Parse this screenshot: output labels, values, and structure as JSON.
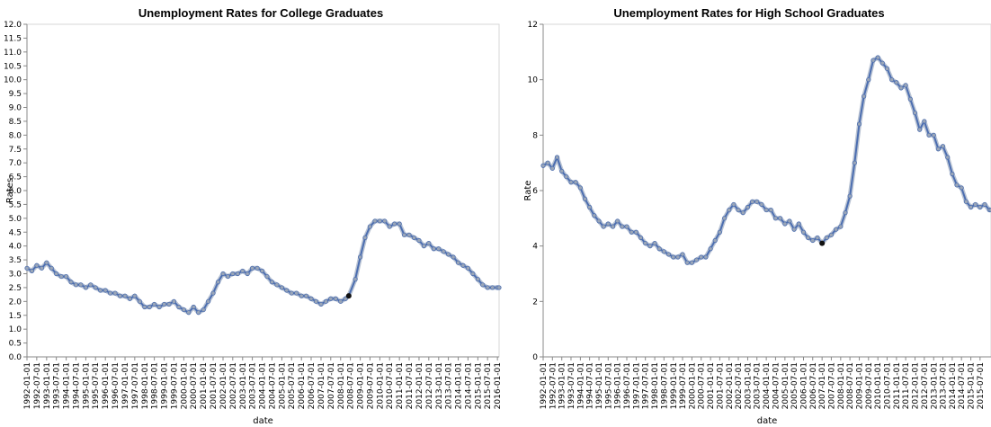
{
  "chart_data": [
    {
      "type": "line",
      "title": "Unemployment Rates for College Graduates",
      "xlabel": "date",
      "ylabel": "Rates",
      "ylim": [
        0,
        12
      ],
      "yticks": [
        0.0,
        0.5,
        1.0,
        1.5,
        2.0,
        2.5,
        3.0,
        3.5,
        4.0,
        4.5,
        5.0,
        5.5,
        6.0,
        6.5,
        7.0,
        7.5,
        8.0,
        8.5,
        9.0,
        9.5,
        10.0,
        10.5,
        11.0,
        11.5,
        12.0
      ],
      "xlim": [
        "1992-01-01",
        "2016-02-01"
      ],
      "grid": false,
      "line_color": "#4c6eb0",
      "point_color": "#9aa6b8",
      "highlight": {
        "x": "2008-06-01",
        "y": 2.2,
        "color": "#111111"
      },
      "series": [
        {
          "values": [
            {
              "x": "1992-01-01",
              "y": 3.2
            },
            {
              "x": "1992-04-01",
              "y": 3.1
            },
            {
              "x": "1992-07-01",
              "y": 3.3
            },
            {
              "x": "1992-10-01",
              "y": 3.2
            },
            {
              "x": "1993-01-01",
              "y": 3.4
            },
            {
              "x": "1993-04-01",
              "y": 3.2
            },
            {
              "x": "1993-07-01",
              "y": 3.0
            },
            {
              "x": "1993-10-01",
              "y": 2.9
            },
            {
              "x": "1994-01-01",
              "y": 2.9
            },
            {
              "x": "1994-04-01",
              "y": 2.7
            },
            {
              "x": "1994-07-01",
              "y": 2.6
            },
            {
              "x": "1994-10-01",
              "y": 2.6
            },
            {
              "x": "1995-01-01",
              "y": 2.5
            },
            {
              "x": "1995-04-01",
              "y": 2.6
            },
            {
              "x": "1995-07-01",
              "y": 2.5
            },
            {
              "x": "1995-10-01",
              "y": 2.4
            },
            {
              "x": "1996-01-01",
              "y": 2.4
            },
            {
              "x": "1996-04-01",
              "y": 2.3
            },
            {
              "x": "1996-07-01",
              "y": 2.3
            },
            {
              "x": "1996-10-01",
              "y": 2.2
            },
            {
              "x": "1997-01-01",
              "y": 2.2
            },
            {
              "x": "1997-04-01",
              "y": 2.1
            },
            {
              "x": "1997-07-01",
              "y": 2.2
            },
            {
              "x": "1997-10-01",
              "y": 2.0
            },
            {
              "x": "1998-01-01",
              "y": 1.8
            },
            {
              "x": "1998-04-01",
              "y": 1.8
            },
            {
              "x": "1998-07-01",
              "y": 1.9
            },
            {
              "x": "1998-10-01",
              "y": 1.8
            },
            {
              "x": "1999-01-01",
              "y": 1.9
            },
            {
              "x": "1999-04-01",
              "y": 1.9
            },
            {
              "x": "1999-07-01",
              "y": 2.0
            },
            {
              "x": "1999-10-01",
              "y": 1.8
            },
            {
              "x": "2000-01-01",
              "y": 1.7
            },
            {
              "x": "2000-04-01",
              "y": 1.6
            },
            {
              "x": "2000-07-01",
              "y": 1.8
            },
            {
              "x": "2000-10-01",
              "y": 1.6
            },
            {
              "x": "2001-01-01",
              "y": 1.7
            },
            {
              "x": "2001-04-01",
              "y": 2.0
            },
            {
              "x": "2001-07-01",
              "y": 2.3
            },
            {
              "x": "2001-10-01",
              "y": 2.7
            },
            {
              "x": "2002-01-01",
              "y": 3.0
            },
            {
              "x": "2002-04-01",
              "y": 2.9
            },
            {
              "x": "2002-07-01",
              "y": 3.0
            },
            {
              "x": "2002-10-01",
              "y": 3.0
            },
            {
              "x": "2003-01-01",
              "y": 3.1
            },
            {
              "x": "2003-04-01",
              "y": 3.0
            },
            {
              "x": "2003-07-01",
              "y": 3.2
            },
            {
              "x": "2003-10-01",
              "y": 3.2
            },
            {
              "x": "2004-01-01",
              "y": 3.1
            },
            {
              "x": "2004-04-01",
              "y": 2.9
            },
            {
              "x": "2004-07-01",
              "y": 2.7
            },
            {
              "x": "2004-10-01",
              "y": 2.6
            },
            {
              "x": "2005-01-01",
              "y": 2.5
            },
            {
              "x": "2005-04-01",
              "y": 2.4
            },
            {
              "x": "2005-07-01",
              "y": 2.3
            },
            {
              "x": "2005-10-01",
              "y": 2.3
            },
            {
              "x": "2006-01-01",
              "y": 2.2
            },
            {
              "x": "2006-04-01",
              "y": 2.2
            },
            {
              "x": "2006-07-01",
              "y": 2.1
            },
            {
              "x": "2006-10-01",
              "y": 2.0
            },
            {
              "x": "2007-01-01",
              "y": 1.9
            },
            {
              "x": "2007-04-01",
              "y": 2.0
            },
            {
              "x": "2007-07-01",
              "y": 2.1
            },
            {
              "x": "2007-10-01",
              "y": 2.1
            },
            {
              "x": "2008-01-01",
              "y": 2.0
            },
            {
              "x": "2008-04-01",
              "y": 2.1
            },
            {
              "x": "2008-06-01",
              "y": 2.2
            },
            {
              "x": "2008-10-01",
              "y": 2.8
            },
            {
              "x": "2009-01-01",
              "y": 3.6
            },
            {
              "x": "2009-04-01",
              "y": 4.3
            },
            {
              "x": "2009-07-01",
              "y": 4.7
            },
            {
              "x": "2009-10-01",
              "y": 4.9
            },
            {
              "x": "2010-01-01",
              "y": 4.9
            },
            {
              "x": "2010-04-01",
              "y": 4.9
            },
            {
              "x": "2010-07-01",
              "y": 4.7
            },
            {
              "x": "2010-10-01",
              "y": 4.8
            },
            {
              "x": "2011-01-01",
              "y": 4.8
            },
            {
              "x": "2011-04-01",
              "y": 4.4
            },
            {
              "x": "2011-07-01",
              "y": 4.4
            },
            {
              "x": "2011-10-01",
              "y": 4.3
            },
            {
              "x": "2012-01-01",
              "y": 4.2
            },
            {
              "x": "2012-04-01",
              "y": 4.0
            },
            {
              "x": "2012-07-01",
              "y": 4.1
            },
            {
              "x": "2012-10-01",
              "y": 3.9
            },
            {
              "x": "2013-01-01",
              "y": 3.9
            },
            {
              "x": "2013-04-01",
              "y": 3.8
            },
            {
              "x": "2013-07-01",
              "y": 3.7
            },
            {
              "x": "2013-10-01",
              "y": 3.6
            },
            {
              "x": "2014-01-01",
              "y": 3.4
            },
            {
              "x": "2014-04-01",
              "y": 3.3
            },
            {
              "x": "2014-07-01",
              "y": 3.2
            },
            {
              "x": "2014-10-01",
              "y": 3.0
            },
            {
              "x": "2015-01-01",
              "y": 2.8
            },
            {
              "x": "2015-04-01",
              "y": 2.6
            },
            {
              "x": "2015-07-01",
              "y": 2.5
            },
            {
              "x": "2015-10-01",
              "y": 2.5
            },
            {
              "x": "2016-01-01",
              "y": 2.5
            },
            {
              "x": "2016-02-01",
              "y": 2.5
            }
          ]
        }
      ]
    },
    {
      "type": "line",
      "title": "Unemployment Rates for High School Graduates",
      "xlabel": "date",
      "ylabel": "Rate",
      "ylim": [
        0,
        12
      ],
      "yticks": [
        0,
        2,
        4,
        6,
        8,
        10,
        12
      ],
      "xlim": [
        "1992-01-01",
        "2016-02-01"
      ],
      "grid": false,
      "line_color": "#4c6eb0",
      "point_color": "#9aa6b8",
      "highlight": {
        "x": "2007-01-01",
        "y": 4.1,
        "color": "#111111"
      },
      "series": [
        {
          "values": [
            {
              "x": "1992-01-01",
              "y": 6.9
            },
            {
              "x": "1992-04-01",
              "y": 7.0
            },
            {
              "x": "1992-07-01",
              "y": 6.8
            },
            {
              "x": "1992-10-01",
              "y": 7.2
            },
            {
              "x": "1993-01-01",
              "y": 6.7
            },
            {
              "x": "1993-04-01",
              "y": 6.5
            },
            {
              "x": "1993-07-01",
              "y": 6.3
            },
            {
              "x": "1993-10-01",
              "y": 6.3
            },
            {
              "x": "1994-01-01",
              "y": 6.1
            },
            {
              "x": "1994-04-01",
              "y": 5.7
            },
            {
              "x": "1994-07-01",
              "y": 5.4
            },
            {
              "x": "1994-10-01",
              "y": 5.1
            },
            {
              "x": "1995-01-01",
              "y": 4.9
            },
            {
              "x": "1995-04-01",
              "y": 4.7
            },
            {
              "x": "1995-07-01",
              "y": 4.8
            },
            {
              "x": "1995-10-01",
              "y": 4.7
            },
            {
              "x": "1996-01-01",
              "y": 4.9
            },
            {
              "x": "1996-04-01",
              "y": 4.7
            },
            {
              "x": "1996-07-01",
              "y": 4.7
            },
            {
              "x": "1996-10-01",
              "y": 4.5
            },
            {
              "x": "1997-01-01",
              "y": 4.5
            },
            {
              "x": "1997-04-01",
              "y": 4.3
            },
            {
              "x": "1997-07-01",
              "y": 4.1
            },
            {
              "x": "1997-10-01",
              "y": 4.0
            },
            {
              "x": "1998-01-01",
              "y": 4.1
            },
            {
              "x": "1998-04-01",
              "y": 3.9
            },
            {
              "x": "1998-07-01",
              "y": 3.8
            },
            {
              "x": "1998-10-01",
              "y": 3.7
            },
            {
              "x": "1999-01-01",
              "y": 3.6
            },
            {
              "x": "1999-04-01",
              "y": 3.6
            },
            {
              "x": "1999-07-01",
              "y": 3.7
            },
            {
              "x": "1999-10-01",
              "y": 3.4
            },
            {
              "x": "2000-01-01",
              "y": 3.4
            },
            {
              "x": "2000-04-01",
              "y": 3.5
            },
            {
              "x": "2000-07-01",
              "y": 3.6
            },
            {
              "x": "2000-10-01",
              "y": 3.6
            },
            {
              "x": "2001-01-01",
              "y": 3.9
            },
            {
              "x": "2001-04-01",
              "y": 4.2
            },
            {
              "x": "2001-07-01",
              "y": 4.5
            },
            {
              "x": "2001-10-01",
              "y": 5.0
            },
            {
              "x": "2002-01-01",
              "y": 5.3
            },
            {
              "x": "2002-04-01",
              "y": 5.5
            },
            {
              "x": "2002-07-01",
              "y": 5.3
            },
            {
              "x": "2002-10-01",
              "y": 5.2
            },
            {
              "x": "2003-01-01",
              "y": 5.4
            },
            {
              "x": "2003-04-01",
              "y": 5.6
            },
            {
              "x": "2003-07-01",
              "y": 5.6
            },
            {
              "x": "2003-10-01",
              "y": 5.5
            },
            {
              "x": "2004-01-01",
              "y": 5.3
            },
            {
              "x": "2004-04-01",
              "y": 5.3
            },
            {
              "x": "2004-07-01",
              "y": 5.0
            },
            {
              "x": "2004-10-01",
              "y": 5.0
            },
            {
              "x": "2005-01-01",
              "y": 4.8
            },
            {
              "x": "2005-04-01",
              "y": 4.9
            },
            {
              "x": "2005-07-01",
              "y": 4.6
            },
            {
              "x": "2005-10-01",
              "y": 4.8
            },
            {
              "x": "2006-01-01",
              "y": 4.5
            },
            {
              "x": "2006-04-01",
              "y": 4.3
            },
            {
              "x": "2006-07-01",
              "y": 4.2
            },
            {
              "x": "2006-10-01",
              "y": 4.3
            },
            {
              "x": "2007-01-01",
              "y": 4.1
            },
            {
              "x": "2007-04-01",
              "y": 4.3
            },
            {
              "x": "2007-07-01",
              "y": 4.4
            },
            {
              "x": "2007-10-01",
              "y": 4.6
            },
            {
              "x": "2008-01-01",
              "y": 4.7
            },
            {
              "x": "2008-04-01",
              "y": 5.2
            },
            {
              "x": "2008-07-01",
              "y": 5.8
            },
            {
              "x": "2008-10-01",
              "y": 7.0
            },
            {
              "x": "2009-01-01",
              "y": 8.4
            },
            {
              "x": "2009-04-01",
              "y": 9.4
            },
            {
              "x": "2009-07-01",
              "y": 10.0
            },
            {
              "x": "2009-10-01",
              "y": 10.7
            },
            {
              "x": "2010-01-01",
              "y": 10.8
            },
            {
              "x": "2010-04-01",
              "y": 10.6
            },
            {
              "x": "2010-07-01",
              "y": 10.4
            },
            {
              "x": "2010-10-01",
              "y": 10.0
            },
            {
              "x": "2011-01-01",
              "y": 9.9
            },
            {
              "x": "2011-04-01",
              "y": 9.7
            },
            {
              "x": "2011-07-01",
              "y": 9.8
            },
            {
              "x": "2011-10-01",
              "y": 9.3
            },
            {
              "x": "2012-01-01",
              "y": 8.8
            },
            {
              "x": "2012-04-01",
              "y": 8.2
            },
            {
              "x": "2012-07-01",
              "y": 8.5
            },
            {
              "x": "2012-10-01",
              "y": 8.0
            },
            {
              "x": "2013-01-01",
              "y": 8.0
            },
            {
              "x": "2013-04-01",
              "y": 7.5
            },
            {
              "x": "2013-07-01",
              "y": 7.6
            },
            {
              "x": "2013-10-01",
              "y": 7.2
            },
            {
              "x": "2014-01-01",
              "y": 6.6
            },
            {
              "x": "2014-04-01",
              "y": 6.2
            },
            {
              "x": "2014-07-01",
              "y": 6.1
            },
            {
              "x": "2014-10-01",
              "y": 5.6
            },
            {
              "x": "2015-01-01",
              "y": 5.4
            },
            {
              "x": "2015-04-01",
              "y": 5.5
            },
            {
              "x": "2015-07-01",
              "y": 5.4
            },
            {
              "x": "2015-10-01",
              "y": 5.5
            },
            {
              "x": "2016-01-01",
              "y": 5.3
            },
            {
              "x": "2016-02-01",
              "y": 5.3
            }
          ]
        }
      ]
    }
  ]
}
